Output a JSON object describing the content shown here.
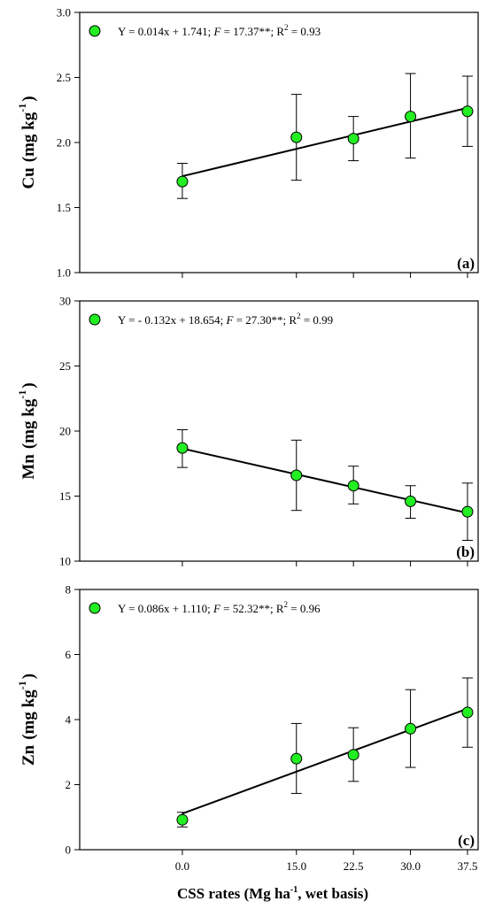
{
  "chart_data": [
    {
      "type": "scatter",
      "panel_label": "(a)",
      "ylabel": {
        "element": "Cu",
        "unit": "(mg kg",
        "exp": "-1",
        "close": ")"
      },
      "ylim": [
        1.0,
        3.0
      ],
      "yticks": [
        "1.0",
        "1.5",
        "2.0",
        "2.5",
        "3.0"
      ],
      "ytick_values": [
        1.0,
        1.5,
        2.0,
        2.5,
        3.0
      ],
      "x": [
        0.0,
        15.0,
        22.5,
        30.0,
        37.5
      ],
      "y": [
        1.7,
        2.04,
        2.03,
        2.2,
        2.24
      ],
      "err": [
        [
          1.57,
          1.84
        ],
        [
          1.71,
          2.37
        ],
        [
          1.86,
          2.2
        ],
        [
          1.88,
          2.53
        ],
        [
          1.97,
          2.51
        ]
      ],
      "fit": {
        "slope": 0.014,
        "intercept": 1.741
      },
      "equation": {
        "lhs": "Y = 0.014x + 1.741; ",
        "F": "F",
        "eqF": " = 17.37**; R",
        "sup": "2",
        "tail": " = 0.93"
      },
      "marker_color": "#22ee22",
      "legend": "top-left"
    },
    {
      "type": "scatter",
      "panel_label": "(b)",
      "ylabel": {
        "element": "Mn",
        "unit": "(mg kg",
        "exp": "-1",
        "close": ")"
      },
      "ylim": [
        10,
        30
      ],
      "yticks": [
        "10",
        "15",
        "20",
        "25",
        "30"
      ],
      "ytick_values": [
        10,
        15,
        20,
        25,
        30
      ],
      "x": [
        0.0,
        15.0,
        22.5,
        30.0,
        37.5
      ],
      "y": [
        18.7,
        16.6,
        15.8,
        14.6,
        13.8
      ],
      "err": [
        [
          17.2,
          20.1
        ],
        [
          13.9,
          19.3
        ],
        [
          14.4,
          17.3
        ],
        [
          13.3,
          15.8
        ],
        [
          11.6,
          16.0
        ]
      ],
      "fit": {
        "slope": -0.132,
        "intercept": 18.654
      },
      "equation": {
        "lhs": "Y = - 0.132x + 18.654; ",
        "F": "F",
        "eqF": " = 27.30**; R",
        "sup": "2",
        "tail": " = 0.99"
      },
      "marker_color": "#22ee22",
      "legend": "top-left"
    },
    {
      "type": "scatter",
      "panel_label": "(c)",
      "ylabel": {
        "element": "Zn",
        "unit": "(mg kg",
        "exp": "-1",
        "close": ")"
      },
      "ylim": [
        0,
        8
      ],
      "yticks": [
        "0",
        "2",
        "4",
        "6",
        "8"
      ],
      "ytick_values": [
        0,
        2,
        4,
        6,
        8
      ],
      "x": [
        0.0,
        15.0,
        22.5,
        30.0,
        37.5
      ],
      "y": [
        0.92,
        2.8,
        2.92,
        3.72,
        4.22
      ],
      "err": [
        [
          0.7,
          1.15
        ],
        [
          1.73,
          3.88
        ],
        [
          2.1,
          3.75
        ],
        [
          2.53,
          4.92
        ],
        [
          3.15,
          5.28
        ]
      ],
      "fit": {
        "slope": 0.086,
        "intercept": 1.11
      },
      "equation": {
        "lhs": "Y = 0.086x + 1.110; ",
        "F": "F",
        "eqF": " = 52.32**; R",
        "sup": "2",
        "tail": " = 0.96"
      },
      "marker_color": "#22ee22",
      "legend": "top-left"
    }
  ],
  "xaxis": {
    "ticks": [
      "0.0",
      "15.0",
      "22.5",
      "30.0",
      "37.5"
    ],
    "tick_values": [
      0.0,
      15.0,
      22.5,
      30.0,
      37.5
    ],
    "xlim": [
      -13.5,
      38.9
    ],
    "label": {
      "pre": "CSS rates (Mg ha",
      "sup": "-1",
      "post": ", wet basis)"
    }
  }
}
